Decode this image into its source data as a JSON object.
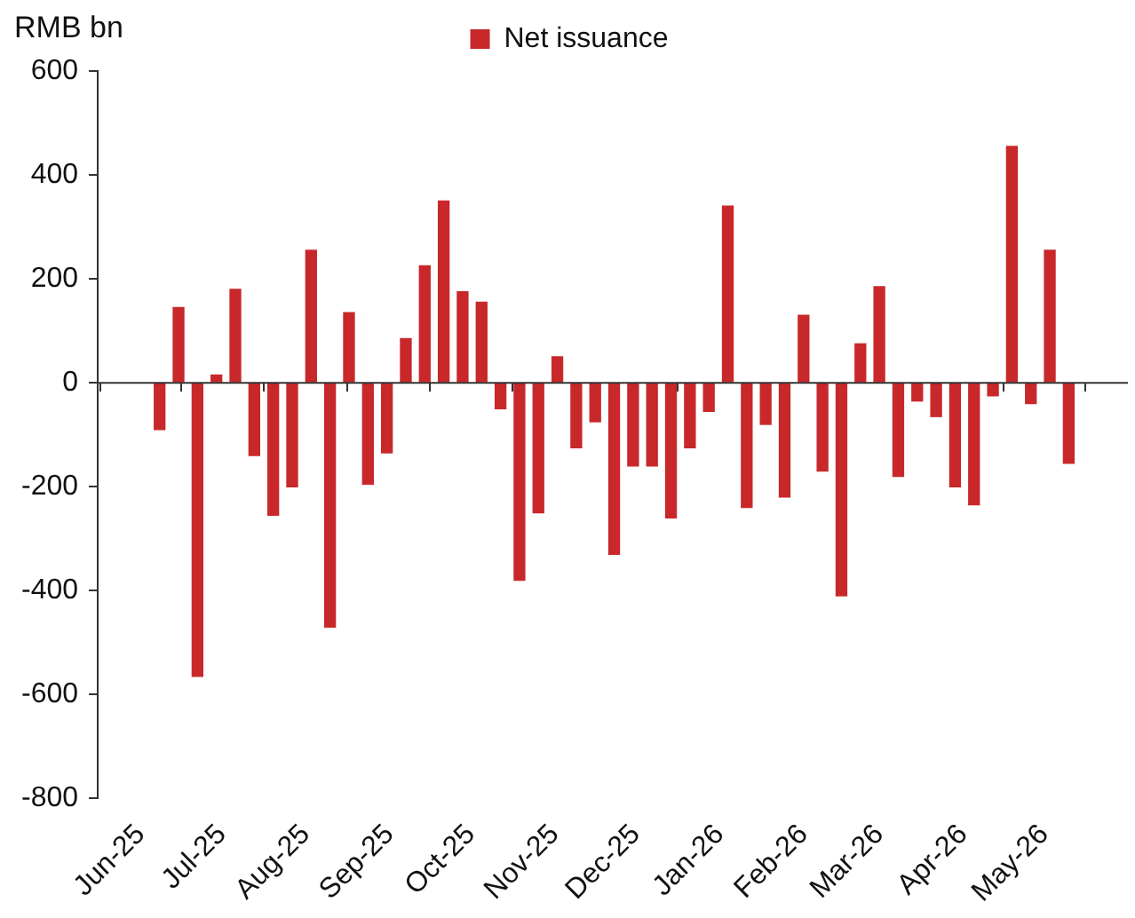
{
  "chart_data": {
    "type": "bar",
    "ylabel": "RMB bn",
    "legend": "top",
    "x": [
      "2025-06-08",
      "2025-06-15",
      "2025-06-22",
      "2025-06-29",
      "2025-07-06",
      "2025-07-13",
      "2025-07-20",
      "2025-07-27",
      "2025-08-03",
      "2025-08-10",
      "2025-08-17",
      "2025-08-24",
      "2025-08-31",
      "2025-09-07",
      "2025-09-14",
      "2025-09-21",
      "2025-09-28",
      "2025-10-05",
      "2025-10-12",
      "2025-10-19",
      "2025-10-26",
      "2025-11-02",
      "2025-11-09",
      "2025-11-16",
      "2025-11-23",
      "2025-11-30",
      "2025-12-07",
      "2025-12-14",
      "2025-12-21",
      "2025-12-28",
      "2026-01-04",
      "2026-01-11",
      "2026-01-18",
      "2026-01-25",
      "2026-02-01",
      "2026-02-08",
      "2026-02-15",
      "2026-02-22",
      "2026-03-01",
      "2026-03-08",
      "2026-03-15",
      "2026-03-22",
      "2026-03-29",
      "2026-04-05",
      "2026-04-12",
      "2026-04-19",
      "2026-04-26",
      "2026-05-03",
      "2026-05-10"
    ],
    "series": [
      {
        "name": "Net issuance",
        "color": "#c8282a",
        "values": [
          -90,
          145,
          -565,
          15,
          180,
          -140,
          -255,
          -200,
          255,
          -470,
          135,
          -195,
          -135,
          85,
          225,
          350,
          175,
          155,
          -50,
          -380,
          -250,
          50,
          -125,
          -75,
          -330,
          -160,
          -160,
          -260,
          -125,
          -55,
          340,
          -240,
          -80,
          -220,
          130,
          -170,
          -410,
          75,
          185,
          -180,
          -35,
          -65,
          -200,
          -235,
          -25,
          455,
          -40,
          255,
          -155
        ]
      }
    ],
    "xlim": [
      "2025-06-01",
      "2026-05-16"
    ],
    "xticks": [
      {
        "value": "2025-06-01",
        "label": "Jun-25"
      },
      {
        "value": "2025-07-01",
        "label": "Jul-25"
      },
      {
        "value": "2025-08-01",
        "label": "Aug-25"
      },
      {
        "value": "2025-09-01",
        "label": "Sep-25"
      },
      {
        "value": "2025-10-01",
        "label": "Oct-25"
      },
      {
        "value": "2025-11-01",
        "label": "Nov-25"
      },
      {
        "value": "2025-12-01",
        "label": "Dec-25"
      },
      {
        "value": "2026-01-01",
        "label": "Jan-26"
      },
      {
        "value": "2026-02-01",
        "label": "Feb-26"
      },
      {
        "value": "2026-03-01",
        "label": "Mar-26"
      },
      {
        "value": "2026-04-01",
        "label": "Apr-26"
      },
      {
        "value": "2026-05-01",
        "label": "May-26"
      }
    ],
    "ref_lines": [
      {
        "axis": "y",
        "value": 0,
        "color": "#333333"
      }
    ],
    "ylim": [
      -800,
      600
    ],
    "yticks": [
      -800,
      -600,
      -400,
      -200,
      0,
      200,
      400,
      600
    ],
    "grid": false
  }
}
